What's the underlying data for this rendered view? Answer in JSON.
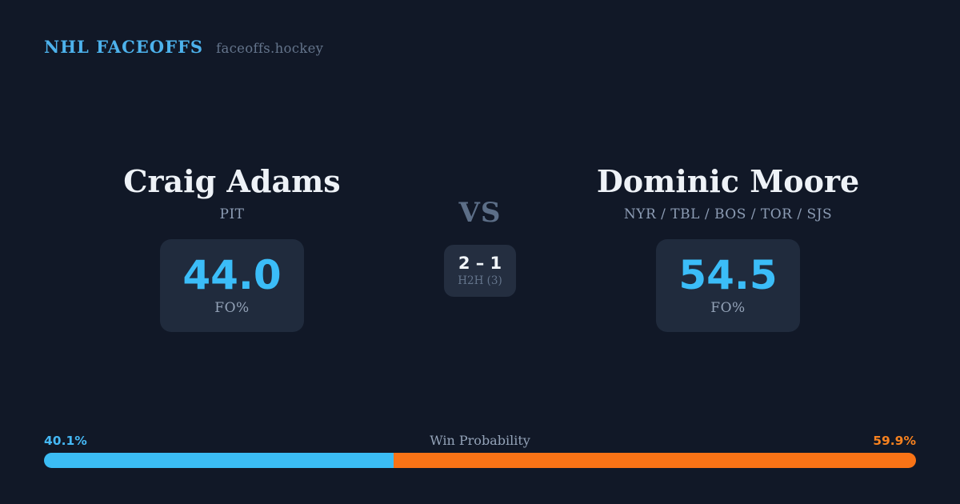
{
  "theme": {
    "background": "#111827",
    "card_background": "#202b3d",
    "accent_blue": "#3bbdf8",
    "accent_orange": "#f97316",
    "header_blue": "#4db2ec",
    "muted_text": "#94a3b8"
  },
  "header": {
    "brand": "NHL FACEOFFS",
    "domain": "faceoffs.hockey"
  },
  "matchup": {
    "vs_label": "VS",
    "h2h": {
      "score": "2 – 1",
      "label": "H2H (3)"
    },
    "players": [
      {
        "name": "Craig Adams",
        "teams": "PIT",
        "fo_pct": "44.0",
        "fo_label": "FO%"
      },
      {
        "name": "Dominic Moore",
        "teams": "NYR / TBL / BOS / TOR / SJS",
        "fo_pct": "54.5",
        "fo_label": "FO%"
      }
    ]
  },
  "win_probability": {
    "label": "Win Probability",
    "left_pct_label": "40.1%",
    "right_pct_label": "59.9%",
    "left_value": 40.1,
    "right_value": 59.9,
    "left_color": "#3bbcf4",
    "right_color": "#f97316"
  }
}
